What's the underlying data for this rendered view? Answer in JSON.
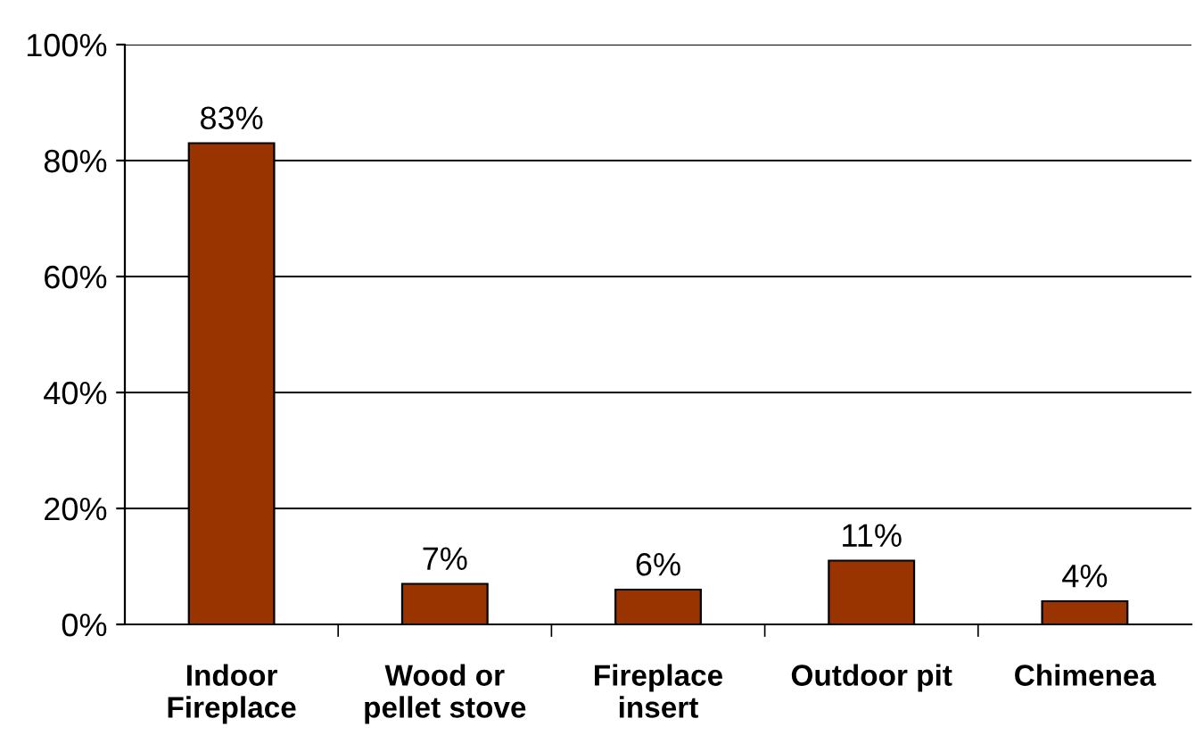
{
  "chart_data": {
    "type": "bar",
    "categories": [
      "Indoor\nFireplace",
      "Wood or\npellet stove",
      "Fireplace\ninsert",
      "Outdoor pit",
      "Chimenea"
    ],
    "values": [
      83,
      7,
      6,
      11,
      4
    ],
    "value_labels": [
      "83%",
      "7%",
      "6%",
      "11%",
      "4%"
    ],
    "color": "#993300",
    "ylim": [
      0,
      100
    ],
    "yticks": [
      {
        "value": 0,
        "label": "0%"
      },
      {
        "value": 20,
        "label": "20%"
      },
      {
        "value": 40,
        "label": "40%"
      },
      {
        "value": 60,
        "label": "60%"
      },
      {
        "value": 80,
        "label": "80%"
      },
      {
        "value": 100,
        "label": "100%"
      }
    ],
    "grid": "y"
  }
}
